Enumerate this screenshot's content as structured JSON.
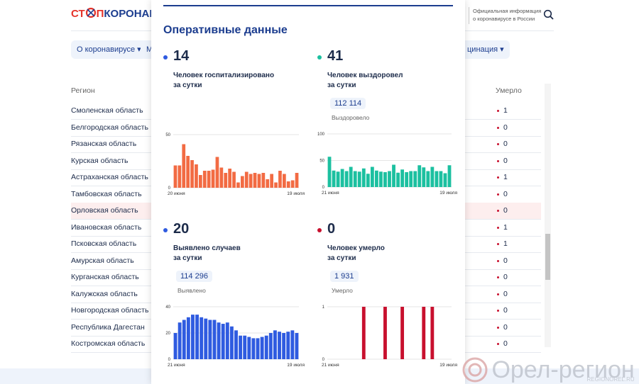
{
  "header": {
    "logo": {
      "red_start": "СТ",
      "red_end": "П",
      "blue": "КОРОНАВИ"
    },
    "info_line1": "Официальная информация",
    "info_line2": "о коронавирусе в России"
  },
  "nav": [
    "О коронавирусе",
    "М",
    "цинация"
  ],
  "table": {
    "headers": [
      "Регион",
      "Умерло"
    ],
    "rows": [
      [
        "Смоленская область",
        1
      ],
      [
        "Белгородская область",
        0
      ],
      [
        "Рязанская область",
        0
      ],
      [
        "Курская область",
        0
      ],
      [
        "Астраханская область",
        1
      ],
      [
        "Тамбовская область",
        0
      ],
      [
        "Орловская область",
        0
      ],
      [
        "Ивановская область",
        1
      ],
      [
        "Псковская область",
        1
      ],
      [
        "Амурская область",
        0
      ],
      [
        "Курганская область",
        0
      ],
      [
        "Калужская область",
        0
      ],
      [
        "Новгородская область",
        0
      ],
      [
        "Республика Дагестан",
        0
      ],
      [
        "Костромская область",
        0
      ]
    ]
  },
  "modal": {
    "title": "Оперативные данные",
    "panels": [
      {
        "value": 14,
        "dot_color": "#2f5be0",
        "label_line1": "Человек госпитализировано",
        "label_line2": "за сутки",
        "chart": {
          "type": "bar",
          "color": "#f26b43",
          "ylim": [
            0,
            50
          ],
          "yticks": [
            0,
            50
          ],
          "x_start": "20 июня",
          "x_end": "19 июля",
          "values": [
            21,
            21,
            41,
            30,
            26,
            22,
            12,
            16,
            16,
            17,
            29,
            19,
            14,
            18,
            15,
            5,
            11,
            15,
            13,
            14,
            13,
            14,
            8,
            13,
            5,
            16,
            13,
            6,
            7,
            14
          ]
        }
      },
      {
        "value": 41,
        "dot_color": "#1cc0a0",
        "label_line1": "Человек выздоровел",
        "label_line2": "за сутки",
        "total": "112 114",
        "total_label": "Выздоровело",
        "chart": {
          "type": "bar",
          "color": "#1cc0a0",
          "ylim": [
            0,
            100
          ],
          "yticks": [
            0,
            50,
            100
          ],
          "x_start": "21 июня",
          "x_end": "19 июля",
          "values": [
            57,
            31,
            29,
            34,
            30,
            38,
            30,
            29,
            35,
            25,
            38,
            31,
            29,
            28,
            30,
            42,
            27,
            33,
            28,
            30,
            30,
            41,
            37,
            30,
            38,
            30,
            30,
            26,
            41
          ]
        }
      },
      {
        "value": 20,
        "dot_color": "#2f5be0",
        "label_line1": "Выявлено случаев",
        "label_line2": "за сутки",
        "total": "114 296",
        "total_label": "Выявлено",
        "chart": {
          "type": "bar",
          "color": "#2f5be0",
          "ylim": [
            0,
            40
          ],
          "yticks": [
            0,
            20,
            40
          ],
          "x_start": "21 июня",
          "x_end": "19 июля",
          "values": [
            20,
            28,
            30,
            32,
            34,
            34,
            32,
            31,
            30,
            30,
            28,
            27,
            28,
            25,
            22,
            18,
            18,
            17,
            16,
            16,
            17,
            18,
            20,
            22,
            21,
            20,
            21,
            22,
            20
          ]
        }
      },
      {
        "value": 0,
        "dot_color": "#c8102e",
        "label_line1": "Человек умерло",
        "label_line2": "за сутки",
        "total": "1 931",
        "total_label": "Умерло",
        "chart": {
          "type": "bar",
          "color": "#c8102e",
          "ylim": [
            0,
            1
          ],
          "yticks": [
            0,
            1
          ],
          "x_start": "21 июня",
          "x_end": "19 июля",
          "values": [
            0,
            0,
            0,
            0,
            0,
            0,
            0,
            0,
            1,
            0,
            0,
            0,
            0,
            1,
            0,
            0,
            0,
            1,
            0,
            0,
            0,
            0,
            1,
            0,
            1,
            0,
            0,
            0,
            0
          ]
        }
      }
    ]
  },
  "watermark": {
    "brand": "Орел-регион",
    "url": "REGIONOREL.RU"
  }
}
